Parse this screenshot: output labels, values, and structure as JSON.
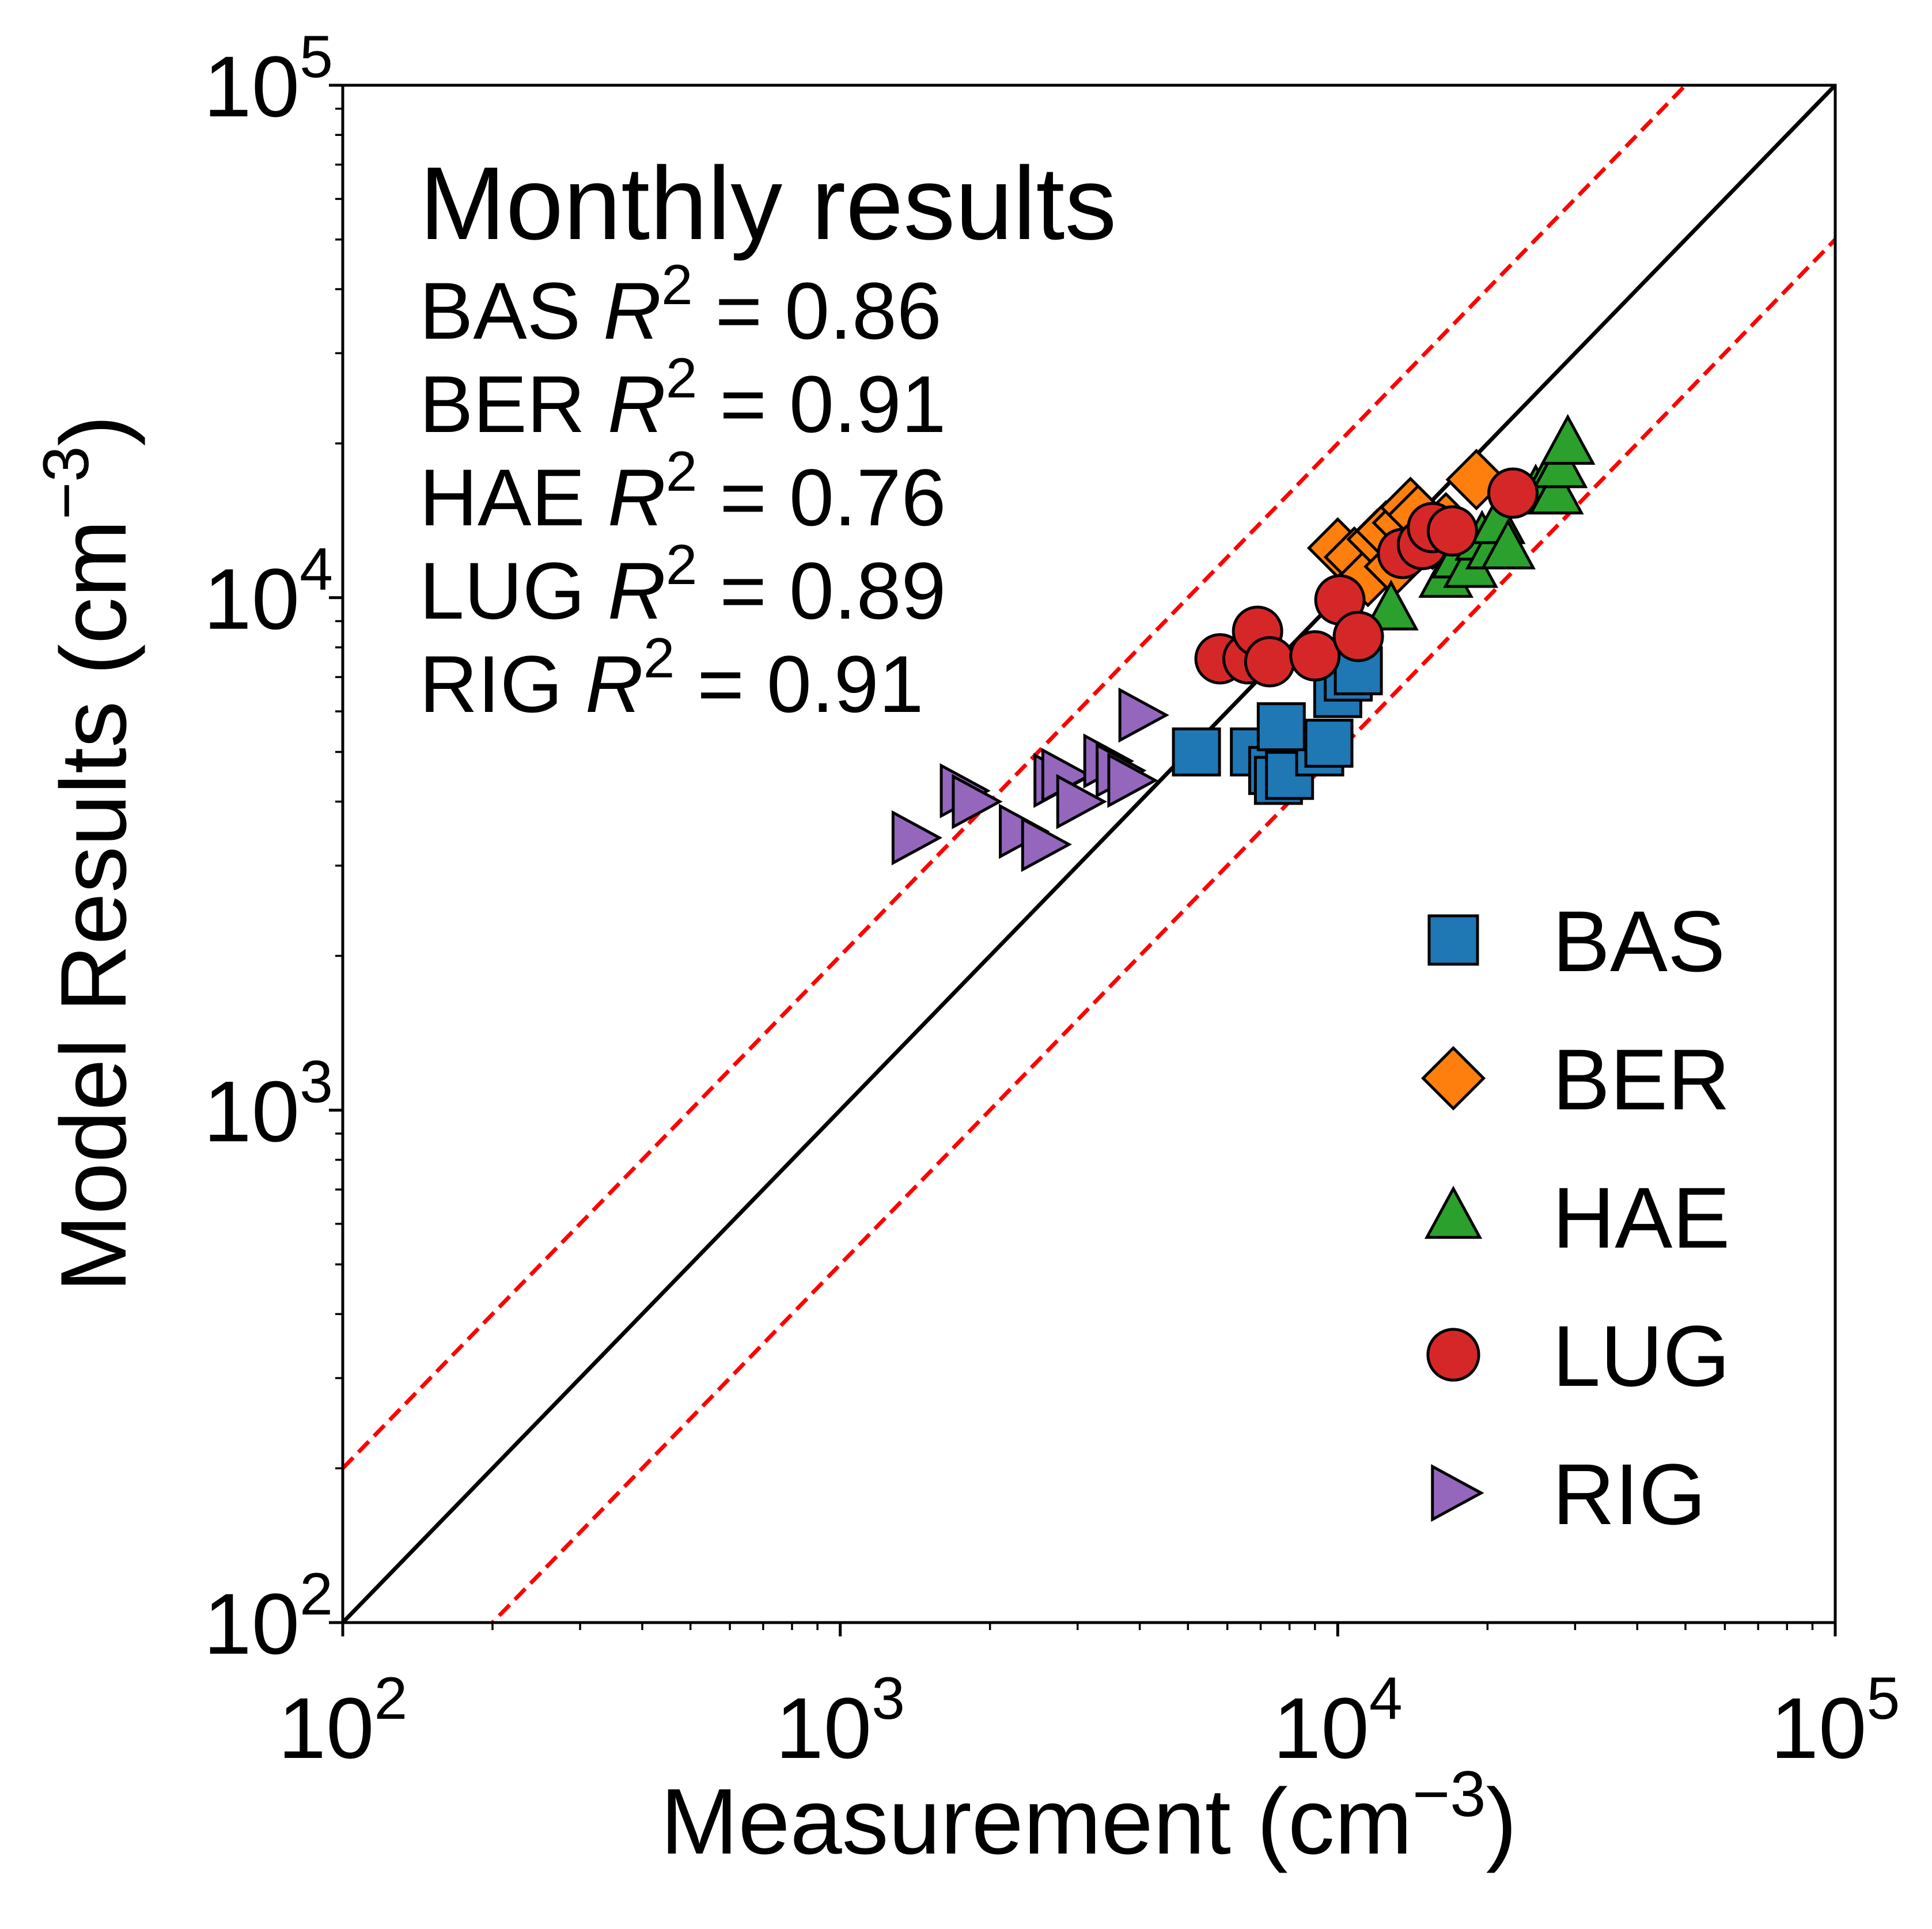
{
  "chart_data": {
    "type": "scatter",
    "title": "",
    "xlabel": "Measurement (cm",
    "xlabel_sup": "−3",
    "xlabel_end": ")",
    "ylabel": "Model Results (cm",
    "ylabel_sup": "−3",
    "ylabel_end": ")",
    "xscale": "log",
    "yscale": "log",
    "xlim": [
      100,
      100000
    ],
    "ylim": [
      100,
      100000
    ],
    "grid": false,
    "legend_position": "bottom-right",
    "ticks": [
      {
        "value": 100,
        "base": "10",
        "exp": "2"
      },
      {
        "value": 1000,
        "base": "10",
        "exp": "3"
      },
      {
        "value": 10000,
        "base": "10",
        "exp": "4"
      },
      {
        "value": 100000,
        "base": "10",
        "exp": "5"
      }
    ],
    "annotation": {
      "heading": "Monthly results",
      "lines": [
        {
          "site": "BAS",
          "symbol": "R",
          "sup": "2",
          "value": "= 0.86"
        },
        {
          "site": "BER",
          "symbol": "R",
          "sup": "2",
          "value": "= 0.91"
        },
        {
          "site": "HAE",
          "symbol": "R",
          "sup": "2",
          "value": "= 0.76"
        },
        {
          "site": "LUG",
          "symbol": "R",
          "sup": "2",
          "value": "= 0.89"
        },
        {
          "site": "RIG",
          "symbol": "R",
          "sup": "2",
          "value": "= 0.91"
        }
      ]
    },
    "reference_lines": [
      {
        "slope": 1,
        "color": "#000000",
        "style": "solid"
      },
      {
        "slope": 2,
        "color": "#ff0000",
        "style": "dashed"
      },
      {
        "slope": 0.5,
        "color": "#ff0000",
        "style": "dashed"
      }
    ],
    "series": [
      {
        "name": "BAS",
        "marker": "square",
        "color": "#1f77b4",
        "x": [
          5200,
          6800,
          7400,
          7600,
          8000,
          9200,
          9600,
          10000,
          10500,
          11000,
          7700
        ],
        "y": [
          5000,
          5000,
          4600,
          4400,
          4500,
          5000,
          5200,
          6500,
          7000,
          7200,
          5600
        ]
      },
      {
        "name": "BER",
        "marker": "diamond",
        "color": "#ff7f0e",
        "x": [
          10000,
          10800,
          11500,
          12000,
          12500,
          13000,
          13500,
          14000,
          14500,
          15500,
          16500,
          19000
        ],
        "y": [
          12500,
          12000,
          11000,
          13000,
          13500,
          11500,
          14000,
          15000,
          14500,
          13000,
          14000,
          17000
        ]
      },
      {
        "name": "HAE",
        "marker": "triangle",
        "color": "#2ca02c",
        "x": [
          12800,
          16500,
          17500,
          18500,
          19500,
          20500,
          21000,
          22000,
          25000,
          26500,
          27500,
          28000,
          29000
        ],
        "y": [
          9500,
          11000,
          12000,
          11500,
          13000,
          12500,
          14000,
          12500,
          16000,
          17000,
          16000,
          18000,
          20000
        ]
      },
      {
        "name": "LUG",
        "marker": "circle",
        "color": "#d62728",
        "x": [
          5800,
          6600,
          6900,
          7300,
          9000,
          10100,
          11000,
          13500,
          14800,
          15500,
          17000,
          22500
        ],
        "y": [
          7600,
          7600,
          8600,
          7500,
          7700,
          9900,
          8400,
          12200,
          12700,
          13700,
          13500,
          16000
        ]
      },
      {
        "name": "RIG",
        "marker": "triangle-right",
        "color": "#9467bd",
        "x": [
          1400,
          1750,
          1850,
          2300,
          2550,
          2700,
          2800,
          3000,
          3400,
          3600,
          3800,
          4000
        ],
        "y": [
          3400,
          4200,
          4000,
          3500,
          3300,
          4400,
          4500,
          4000,
          4800,
          4600,
          4400,
          5900
        ]
      }
    ]
  }
}
